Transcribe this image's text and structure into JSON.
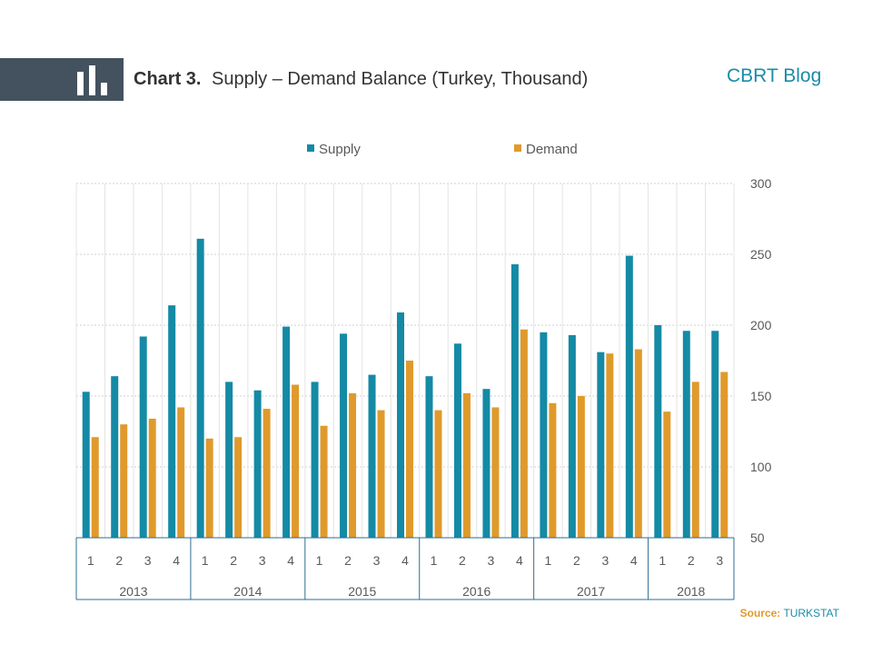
{
  "header": {
    "chart_label": "Chart 3.",
    "chart_title": "Supply – Demand Balance (Turkey, Thousand)",
    "brand": "CBRT Blog",
    "icon": "bar-chart-icon"
  },
  "source": {
    "label": "Source:",
    "value": "TURKSTAT"
  },
  "colors": {
    "supply": "#148aa5",
    "demand": "#e09a2c",
    "header_band": "#44515f",
    "brand": "#1b8ca8"
  },
  "chart_data": {
    "type": "bar",
    "categories": [
      "1",
      "2",
      "3",
      "4",
      "1",
      "2",
      "3",
      "4",
      "1",
      "2",
      "3",
      "4",
      "1",
      "2",
      "3",
      "4",
      "1",
      "2",
      "3",
      "4",
      "1",
      "2",
      "3"
    ],
    "groups": [
      {
        "label": "2013",
        "count": 4
      },
      {
        "label": "2014",
        "count": 4
      },
      {
        "label": "2015",
        "count": 4
      },
      {
        "label": "2016",
        "count": 4
      },
      {
        "label": "2017",
        "count": 4
      },
      {
        "label": "2018",
        "count": 3
      }
    ],
    "series": [
      {
        "name": "Supply",
        "values": [
          153,
          164,
          192,
          214,
          261,
          160,
          154,
          199,
          160,
          194,
          165,
          209,
          164,
          187,
          155,
          243,
          195,
          193,
          181,
          249,
          200,
          196,
          196
        ]
      },
      {
        "name": "Demand",
        "values": [
          121,
          130,
          134,
          142,
          120,
          121,
          141,
          158,
          129,
          152,
          140,
          175,
          140,
          152,
          142,
          197,
          145,
          150,
          180,
          183,
          139,
          160,
          167
        ]
      }
    ],
    "ylim": [
      50,
      300
    ],
    "yticks": [
      50,
      100,
      150,
      200,
      250,
      300
    ],
    "y_axis_side": "right",
    "grid": true,
    "legend": "top-center"
  }
}
